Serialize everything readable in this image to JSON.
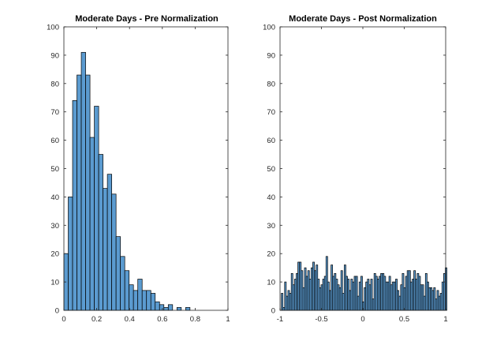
{
  "chart_data": [
    {
      "type": "histogram",
      "title": "Moderate Days - Pre Normalization",
      "xlim": [
        0,
        1
      ],
      "ylim": [
        0,
        100
      ],
      "xticks": [
        "0",
        "0.2",
        "0.4",
        "0.6",
        "0.8",
        "1"
      ],
      "yticks": [
        "0",
        "10",
        "20",
        "30",
        "40",
        "50",
        "60",
        "70",
        "80",
        "90",
        "100"
      ],
      "bin_edges_start": 0,
      "bin_width": 0.0265,
      "values": [
        20,
        40,
        74,
        83,
        91,
        83,
        61,
        72,
        55,
        43,
        48,
        41,
        26,
        19,
        14,
        9,
        7,
        11,
        7,
        7,
        6,
        3,
        2,
        1,
        2,
        0,
        1,
        0,
        1
      ],
      "bar_color": "#5b9bd0",
      "grid": false
    },
    {
      "type": "histogram",
      "title": "Moderate Days - Post Normalization",
      "xlim": [
        -1,
        1
      ],
      "ylim": [
        0,
        100
      ],
      "xticks": [
        "-1",
        "-0.5",
        "0",
        "0.5",
        "1"
      ],
      "yticks": [
        "0",
        "10",
        "20",
        "30",
        "40",
        "50",
        "60",
        "70",
        "80",
        "90",
        "100"
      ],
      "bin_edges_start": -0.985,
      "bin_width": 0.02,
      "values": [
        6,
        1,
        10,
        5,
        7,
        6,
        13,
        9,
        11,
        13,
        17,
        17,
        14,
        8,
        15,
        12,
        14,
        11,
        15,
        17,
        14,
        16,
        11,
        8,
        9,
        11,
        12,
        19,
        10,
        7,
        16,
        12,
        13,
        11,
        9,
        8,
        14,
        6,
        16,
        12,
        11,
        7,
        11,
        10,
        12,
        12,
        5,
        10,
        12,
        3,
        8,
        10,
        11,
        9,
        11,
        4,
        13,
        12,
        11,
        12,
        13,
        13,
        12,
        10,
        10,
        12,
        9,
        10,
        10,
        11,
        7,
        5,
        9,
        13,
        8,
        12,
        14,
        14,
        10,
        11,
        14,
        11,
        13,
        12,
        9,
        9,
        5,
        13,
        10,
        8,
        8,
        7,
        8,
        4,
        7,
        5,
        6,
        10,
        13,
        15
      ],
      "bar_color": "#5b9bd0",
      "grid": false
    }
  ]
}
